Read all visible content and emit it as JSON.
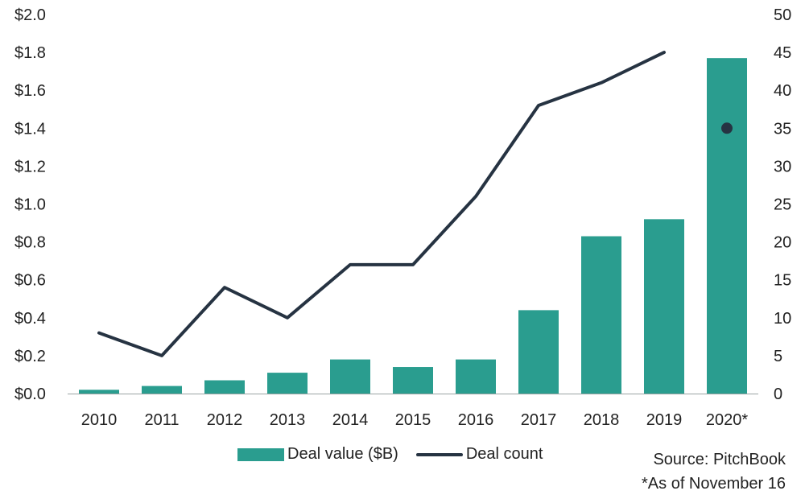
{
  "chart_data": {
    "type": "bar",
    "categories": [
      "2010",
      "2011",
      "2012",
      "2013",
      "2014",
      "2015",
      "2016",
      "2017",
      "2018",
      "2019",
      "2020*"
    ],
    "series": [
      {
        "name": "Deal value ($B)",
        "type": "bar",
        "axis": "left",
        "color": "#2a9d8f",
        "values": [
          0.02,
          0.04,
          0.07,
          0.11,
          0.18,
          0.14,
          0.18,
          0.44,
          0.83,
          0.92,
          1.77
        ]
      },
      {
        "name": "Deal count",
        "type": "line",
        "axis": "right",
        "color": "#263342",
        "values": [
          8,
          5,
          14,
          10,
          17,
          17,
          26,
          38,
          41,
          45,
          null
        ],
        "point_marker": {
          "category": "2020*",
          "value": 35
        }
      }
    ],
    "y_left": {
      "ylim": [
        0,
        2.0
      ],
      "ticks": [
        "$0.0",
        "$0.2",
        "$0.4",
        "$0.6",
        "$0.8",
        "$1.0",
        "$1.2",
        "$1.4",
        "$1.6",
        "$1.8",
        "$2.0"
      ]
    },
    "y_right": {
      "ylim": [
        0,
        50
      ],
      "ticks": [
        "0",
        "5",
        "10",
        "15",
        "20",
        "25",
        "30",
        "35",
        "40",
        "45",
        "50"
      ]
    },
    "grid": false,
    "legend_position": "bottom"
  },
  "legend": {
    "bar_label": "Deal value ($B)",
    "line_label": "Deal count"
  },
  "notes": {
    "source": "Source: PitchBook",
    "footnote": "*As of November 16"
  }
}
